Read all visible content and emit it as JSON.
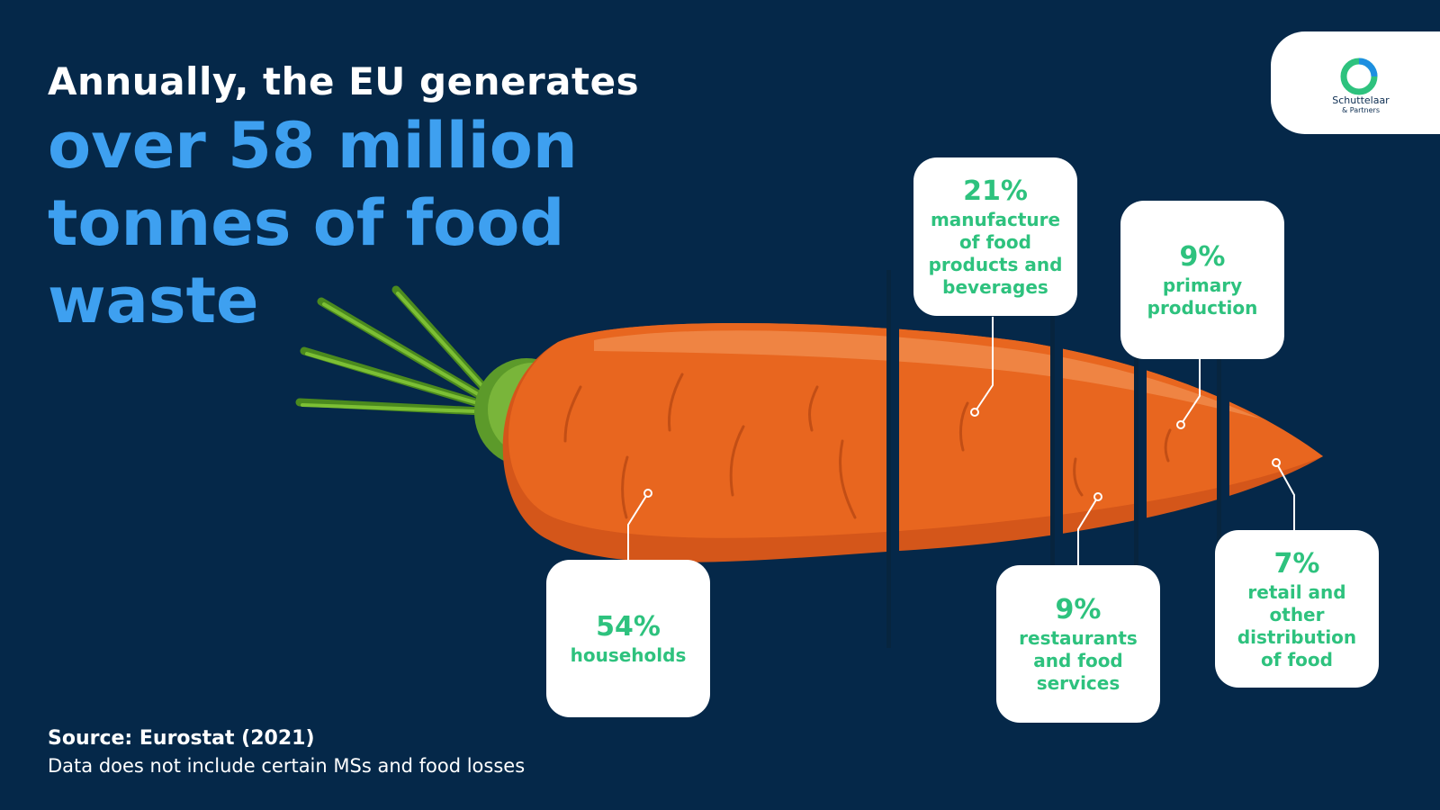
{
  "headline": {
    "lead": "Annually, the EU generates",
    "highlight": "over 58 million tonnes of food waste"
  },
  "logo": {
    "name": "Schuttelaar",
    "sub": "& Partners"
  },
  "segments": [
    {
      "pct": "54%",
      "label": "households"
    },
    {
      "pct": "21%",
      "label": "manufacture\nof food\nproducts and\nbeverages"
    },
    {
      "pct": "9%",
      "label": "restaurants\nand food\nservices"
    },
    {
      "pct": "9%",
      "label": "primary\nproduction"
    },
    {
      "pct": "7%",
      "label": "retail and\nother\ndistribution\nof food"
    }
  ],
  "source": {
    "title": "Source: Eurostat (2021)",
    "note": "Data does not include certain MSs and food losses"
  },
  "colors": {
    "background": "#052849",
    "highlight": "#3ea0f0",
    "accent": "#2ec27e",
    "carrot": "#e8641f"
  }
}
